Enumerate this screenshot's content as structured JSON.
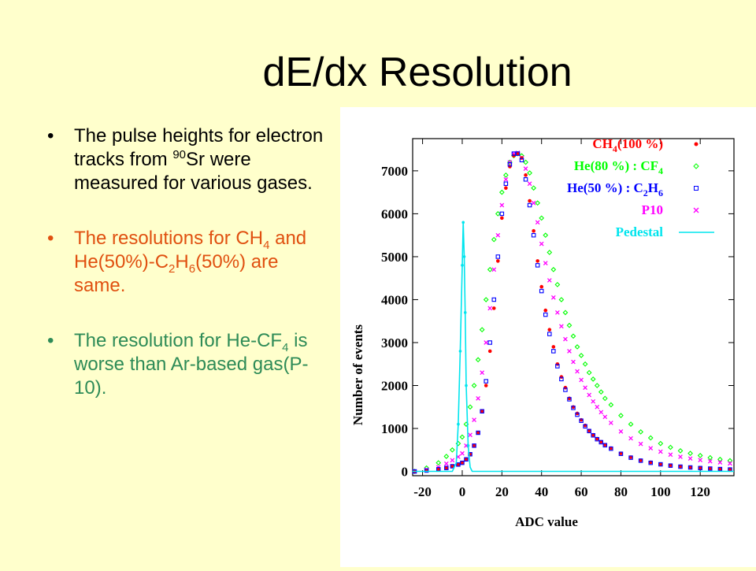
{
  "slide": {
    "title": "dE/dx Resolution",
    "bullets": [
      {
        "color": "#000000",
        "p1": "The pulse heights for electron tracks from ",
        "sup": "90",
        "p2": "Sr were measured for various gases."
      },
      {
        "color": "#e05010",
        "p1": "The resolutions for CH",
        "s1": "4",
        "p2": " and He(50%)-C",
        "s2": "2",
        "p3": "H",
        "s3": "6",
        "p4": "(50%) are same."
      },
      {
        "color": "#2e8b57",
        "p1": "The resolution for He-CF",
        "s1": "4",
        "p2": " is worse than Ar-based gas(P-10)."
      }
    ],
    "bullet_glyph": "•"
  },
  "chart_data": {
    "type": "scatter",
    "xlabel": "ADC value",
    "ylabel": "Number of events",
    "xlim": [
      -25,
      137
    ],
    "ylim": [
      -100,
      7750
    ],
    "xticks": [
      -20,
      0,
      20,
      40,
      60,
      80,
      100,
      120
    ],
    "yticks": [
      0,
      1000,
      2000,
      3000,
      4000,
      5000,
      6000,
      7000
    ],
    "legend_position": "top-right",
    "series": [
      {
        "name": "CH4(100 %)",
        "legend_label": {
          "main": "CH",
          "sub": "4",
          "rest": "(100 %)"
        },
        "color": "#ff0000",
        "marker": "dot",
        "x": [
          -24,
          -18,
          -12,
          -8,
          -5,
          -2,
          0,
          2,
          4,
          6,
          8,
          10,
          12,
          14,
          16,
          18,
          20,
          22,
          24,
          26,
          28,
          30,
          32,
          34,
          36,
          38,
          40,
          42,
          44,
          46,
          48,
          50,
          52,
          54,
          56,
          58,
          60,
          62,
          64,
          66,
          68,
          70,
          72,
          75,
          80,
          85,
          90,
          95,
          100,
          105,
          110,
          115,
          120,
          125,
          130,
          135
        ],
        "y": [
          0,
          20,
          50,
          80,
          120,
          160,
          200,
          280,
          400,
          600,
          900,
          1400,
          2000,
          2800,
          3800,
          4900,
          5900,
          6600,
          7100,
          7350,
          7400,
          7300,
          6900,
          6300,
          5600,
          4900,
          4300,
          3750,
          3300,
          2900,
          2500,
          2200,
          1950,
          1700,
          1500,
          1350,
          1200,
          1070,
          950,
          850,
          760,
          690,
          620,
          540,
          420,
          330,
          260,
          210,
          170,
          140,
          115,
          95,
          80,
          65,
          55,
          45
        ]
      },
      {
        "name": "He(80 %) : CF4",
        "legend_label": {
          "main": "He(80 %) : CF",
          "sub": "4",
          "rest": ""
        },
        "color": "#00ff00",
        "marker": "diamond",
        "x": [
          -24,
          -18,
          -12,
          -8,
          -5,
          -2,
          0,
          2,
          4,
          6,
          8,
          10,
          12,
          14,
          16,
          18,
          20,
          22,
          24,
          26,
          28,
          30,
          32,
          34,
          36,
          38,
          40,
          42,
          44,
          46,
          48,
          50,
          52,
          54,
          56,
          58,
          60,
          62,
          64,
          66,
          68,
          70,
          72,
          75,
          80,
          85,
          90,
          95,
          100,
          105,
          110,
          115,
          120,
          125,
          130,
          135
        ],
        "y": [
          0,
          80,
          200,
          350,
          500,
          650,
          800,
          1100,
          1500,
          2000,
          2600,
          3300,
          4000,
          4700,
          5400,
          6000,
          6500,
          6900,
          7200,
          7350,
          7400,
          7350,
          7200,
          6950,
          6600,
          6250,
          5900,
          5500,
          5100,
          4700,
          4350,
          4000,
          3700,
          3400,
          3150,
          2900,
          2700,
          2500,
          2300,
          2150,
          2000,
          1850,
          1700,
          1550,
          1300,
          1100,
          920,
          780,
          650,
          560,
          480,
          420,
          370,
          320,
          280,
          250
        ]
      },
      {
        "name": "He(50 %) : C2H6",
        "legend_label": {
          "main": "He(50 %) : C",
          "sub": "2",
          "mid": "H",
          "sub2": "6"
        },
        "color": "#0000ff",
        "marker": "square",
        "x": [
          -24,
          -18,
          -12,
          -8,
          -5,
          -2,
          0,
          2,
          4,
          6,
          8,
          10,
          12,
          14,
          16,
          18,
          20,
          22,
          24,
          26,
          28,
          30,
          32,
          34,
          36,
          38,
          40,
          42,
          44,
          46,
          48,
          50,
          52,
          54,
          56,
          58,
          60,
          62,
          64,
          66,
          68,
          70,
          72,
          75,
          80,
          85,
          90,
          95,
          100,
          105,
          110,
          115,
          120,
          125,
          130,
          135
        ],
        "y": [
          0,
          20,
          50,
          80,
          120,
          160,
          200,
          280,
          400,
          600,
          900,
          1400,
          2100,
          3000,
          4000,
          5000,
          6000,
          6700,
          7150,
          7400,
          7400,
          7250,
          6800,
          6200,
          5500,
          4800,
          4200,
          3650,
          3200,
          2800,
          2450,
          2150,
          1900,
          1680,
          1480,
          1320,
          1180,
          1050,
          940,
          840,
          750,
          680,
          610,
          530,
          410,
          320,
          250,
          200,
          165,
          135,
          110,
          92,
          78,
          65,
          55,
          45
        ]
      },
      {
        "name": "P10",
        "legend_label": {
          "main": "P10",
          "sub": "",
          "rest": ""
        },
        "color": "#ff00ff",
        "marker": "cross",
        "x": [
          -24,
          -18,
          -12,
          -8,
          -5,
          -2,
          0,
          2,
          4,
          6,
          8,
          10,
          12,
          14,
          16,
          18,
          20,
          22,
          24,
          26,
          28,
          30,
          32,
          34,
          36,
          38,
          40,
          42,
          44,
          46,
          48,
          50,
          52,
          54,
          56,
          58,
          60,
          62,
          64,
          66,
          68,
          70,
          72,
          75,
          80,
          85,
          90,
          95,
          100,
          105,
          110,
          115,
          120,
          125,
          130,
          135
        ],
        "y": [
          0,
          40,
          100,
          180,
          260,
          340,
          420,
          600,
          850,
          1200,
          1700,
          2300,
          3000,
          3800,
          4700,
          5500,
          6200,
          6800,
          7200,
          7400,
          7420,
          7300,
          7050,
          6700,
          6250,
          5800,
          5300,
          4850,
          4450,
          4050,
          3700,
          3380,
          3080,
          2800,
          2550,
          2330,
          2130,
          1950,
          1780,
          1630,
          1500,
          1380,
          1270,
          1130,
          930,
          770,
          640,
          540,
          460,
          390,
          340,
          300,
          265,
          235,
          210,
          185
        ]
      },
      {
        "name": "Pedestal",
        "legend_label": {
          "main": "Pedestal",
          "sub": "",
          "rest": ""
        },
        "color": "#00e5ee",
        "marker": "line",
        "x": [
          -25,
          -20,
          -10,
          -5,
          -3,
          -2,
          -1,
          0,
          0.5,
          1,
          1.5,
          2,
          3,
          4,
          5,
          10,
          20,
          40,
          60,
          80,
          100,
          120,
          137
        ],
        "y": [
          0,
          0,
          0,
          0,
          200,
          1100,
          2800,
          4800,
          5800,
          5000,
          3700,
          2000,
          600,
          100,
          0,
          0,
          0,
          0,
          0,
          0,
          0,
          0,
          0
        ]
      }
    ]
  }
}
